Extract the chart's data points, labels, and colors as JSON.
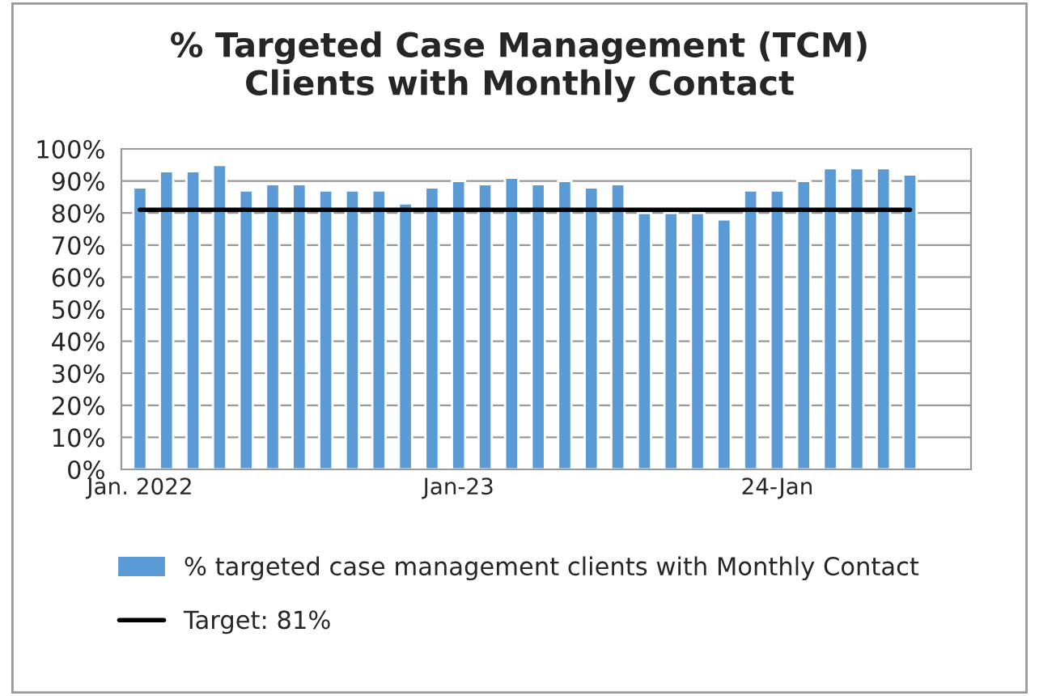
{
  "chart_data": {
    "type": "bar",
    "title": "% Targeted Case Management (TCM)\nClients with Monthly Contact",
    "categories": [
      "Jan. 2022",
      null,
      null,
      null,
      null,
      null,
      null,
      null,
      null,
      null,
      null,
      null,
      "Jan-23",
      null,
      null,
      null,
      null,
      null,
      null,
      null,
      null,
      null,
      null,
      null,
      "24-Jan",
      null,
      null,
      null,
      null,
      null
    ],
    "series": [
      {
        "name": "% targeted case management clients with Monthly Contact",
        "color": "#5b9bd5",
        "values": [
          88,
          93,
          93,
          95,
          87,
          89,
          89,
          87,
          87,
          87,
          83,
          88,
          90,
          89,
          91,
          89,
          90,
          88,
          89,
          80,
          80,
          80,
          78,
          87,
          87,
          90,
          94,
          94,
          94,
          92
        ]
      },
      {
        "name": "Target: 81%",
        "type": "line",
        "color": "#000000",
        "values": [
          81,
          81,
          81,
          81,
          81,
          81,
          81,
          81,
          81,
          81,
          81,
          81,
          81,
          81,
          81,
          81,
          81,
          81,
          81,
          81,
          81,
          81,
          81,
          81,
          81,
          81,
          81,
          81,
          81,
          81
        ]
      }
    ],
    "ylim": [
      0,
      100
    ],
    "yticks": [
      {
        "value": 0,
        "label": "0%"
      },
      {
        "value": 10,
        "label": "10%"
      },
      {
        "value": 20,
        "label": "20%"
      },
      {
        "value": 30,
        "label": "30%"
      },
      {
        "value": 40,
        "label": "40%"
      },
      {
        "value": 50,
        "label": "50%"
      },
      {
        "value": 60,
        "label": "60%"
      },
      {
        "value": 70,
        "label": "70%"
      },
      {
        "value": 80,
        "label": "80%"
      },
      {
        "value": 90,
        "label": "90%"
      },
      {
        "value": 100,
        "label": "100%"
      }
    ],
    "grid": "y",
    "legend": "bottom"
  }
}
